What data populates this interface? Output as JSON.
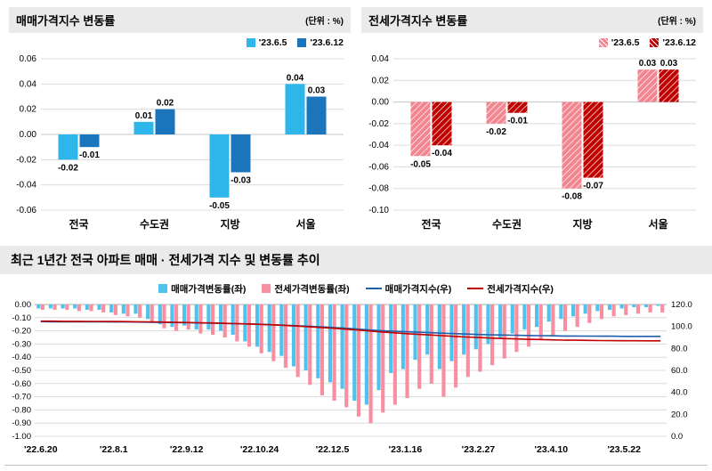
{
  "chart_data": [
    {
      "id": "sales",
      "type": "bar",
      "title": "매매가격지수 변동률",
      "unit": "(단위 : %)",
      "categories": [
        "전국",
        "수도권",
        "지방",
        "서울"
      ],
      "series": [
        {
          "name": "'23.6.5",
          "color": "#2EB5EA",
          "hatch": false,
          "values": [
            -0.02,
            0.01,
            -0.05,
            0.04
          ]
        },
        {
          "name": "'23.6.12",
          "color": "#1B75BC",
          "hatch": false,
          "values": [
            -0.01,
            0.02,
            -0.03,
            0.03
          ]
        }
      ],
      "ylim": [
        -0.06,
        0.06
      ],
      "y_ticks": [
        "0.06",
        "0.04",
        "0.02",
        "0.00",
        "-0.02",
        "-0.04",
        "-0.06"
      ],
      "grid": true,
      "legend_position": "top-right"
    },
    {
      "id": "jeonse",
      "type": "bar",
      "title": "전세가격지수 변동률",
      "unit": "(단위 : %)",
      "categories": [
        "전국",
        "수도권",
        "지방",
        "서울"
      ],
      "series": [
        {
          "name": "'23.6.5",
          "color": "#F2858F",
          "hatch": true,
          "values": [
            -0.05,
            -0.02,
            -0.08,
            0.03
          ]
        },
        {
          "name": "'23.6.12",
          "color": "#C00000",
          "hatch": true,
          "values": [
            -0.04,
            -0.01,
            -0.07,
            0.03
          ]
        }
      ],
      "ylim": [
        -0.1,
        0.04
      ],
      "y_ticks": [
        "0.04",
        "0.02",
        "0.00",
        "-0.02",
        "-0.04",
        "-0.06",
        "-0.08",
        "-0.10"
      ],
      "grid": true,
      "legend_position": "top-right"
    },
    {
      "id": "trend",
      "type": "bar+line",
      "title": "최근 1년간 전국 아파트 매매 · 전세가격 지수 및 변동률 추이",
      "n_points": 52,
      "x_tick_labels": [
        "'22.6.20",
        "'22.8.1",
        "'22.9.12",
        "'22.10.24",
        "'22.12.5",
        "'23.1.16",
        "'23.2.27",
        "'23.4.10",
        "'23.5.22"
      ],
      "x_tick_indices": [
        0,
        6,
        12,
        18,
        24,
        30,
        36,
        42,
        48
      ],
      "left_axis": {
        "ylim": [
          -1.0,
          0.0
        ],
        "ticks": [
          "0.00",
          "-0.10",
          "-0.20",
          "-0.30",
          "-0.40",
          "-0.50",
          "-0.60",
          "-0.70",
          "-0.80",
          "-0.90",
          "-1.00"
        ]
      },
      "right_axis": {
        "ylim": [
          0,
          120
        ],
        "ticks": [
          "120.0",
          "100.0",
          "80.0",
          "60.0",
          "40.0",
          "20.0",
          "0.0"
        ]
      },
      "bar_series": [
        {
          "name": "매매가격변동률(좌)",
          "color": "#4FC3ED",
          "axis": "left",
          "values": [
            -0.03,
            -0.03,
            -0.03,
            -0.03,
            -0.04,
            -0.04,
            -0.06,
            -0.07,
            -0.07,
            -0.11,
            -0.15,
            -0.17,
            -0.16,
            -0.19,
            -0.19,
            -0.2,
            -0.23,
            -0.28,
            -0.32,
            -0.36,
            -0.39,
            -0.47,
            -0.5,
            -0.56,
            -0.59,
            -0.64,
            -0.73,
            -0.76,
            -0.65,
            -0.52,
            -0.49,
            -0.42,
            -0.38,
            -0.49,
            -0.43,
            -0.38,
            -0.34,
            -0.3,
            -0.26,
            -0.22,
            -0.19,
            -0.17,
            -0.13,
            -0.11,
            -0.09,
            -0.07,
            -0.05,
            -0.04,
            -0.03,
            -0.02,
            -0.02,
            -0.01
          ]
        },
        {
          "name": "전세가격변동률(좌)",
          "color": "#F78FA0",
          "axis": "left",
          "values": [
            -0.04,
            -0.04,
            -0.04,
            -0.05,
            -0.05,
            -0.06,
            -0.08,
            -0.09,
            -0.1,
            -0.14,
            -0.18,
            -0.2,
            -0.19,
            -0.22,
            -0.23,
            -0.25,
            -0.28,
            -0.32,
            -0.37,
            -0.43,
            -0.48,
            -0.55,
            -0.61,
            -0.69,
            -0.73,
            -0.78,
            -0.85,
            -0.9,
            -0.82,
            -0.76,
            -0.71,
            -0.64,
            -0.6,
            -0.7,
            -0.63,
            -0.55,
            -0.51,
            -0.46,
            -0.41,
            -0.36,
            -0.32,
            -0.27,
            -0.24,
            -0.2,
            -0.17,
            -0.14,
            -0.11,
            -0.09,
            -0.08,
            -0.07,
            -0.06,
            -0.06
          ]
        }
      ],
      "line_series": [
        {
          "name": "매매가격지수(우)",
          "color": "#1F5FA9",
          "axis": "right",
          "values": [
            104.4,
            104.3,
            104.3,
            104.3,
            104.2,
            104.2,
            104.1,
            104.1,
            104.0,
            103.9,
            103.7,
            103.6,
            103.4,
            103.2,
            103.0,
            102.8,
            102.6,
            102.3,
            102.0,
            101.6,
            101.2,
            100.7,
            100.2,
            99.7,
            99.1,
            98.4,
            97.7,
            96.9,
            96.2,
            95.7,
            95.2,
            94.8,
            94.4,
            93.9,
            93.5,
            93.1,
            92.7,
            92.4,
            92.2,
            92.0,
            91.8,
            91.6,
            91.5,
            91.3,
            91.3,
            91.2,
            91.1,
            91.1,
            91.0,
            91.0,
            91.0,
            91.0
          ]
        },
        {
          "name": "전세가격지수(우)",
          "color": "#C00000",
          "axis": "right",
          "values": [
            104.8,
            104.8,
            104.7,
            104.7,
            104.6,
            104.6,
            104.5,
            104.4,
            104.3,
            104.2,
            104.0,
            103.8,
            103.6,
            103.4,
            103.2,
            102.9,
            102.6,
            102.3,
            101.9,
            101.5,
            101.0,
            100.4,
            99.8,
            99.1,
            98.4,
            97.6,
            96.8,
            95.9,
            95.0,
            94.3,
            93.5,
            92.9,
            92.3,
            91.6,
            91.0,
            90.4,
            89.9,
            89.4,
            89.0,
            88.7,
            88.3,
            88.1,
            87.8,
            87.6,
            87.5,
            87.3,
            87.2,
            87.1,
            87.0,
            87.0,
            86.9,
            86.9
          ]
        }
      ],
      "grid": true,
      "legend_position": "top-center"
    }
  ]
}
